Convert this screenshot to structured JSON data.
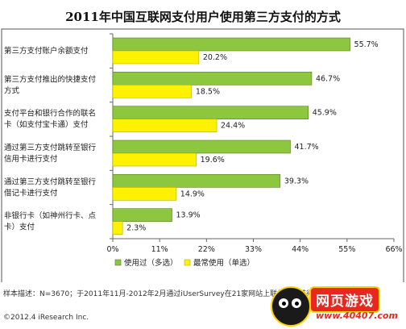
{
  "title": "2011年中国互联网支付用户使用第三方支付的方式",
  "source": "样本描述：N=3670；于2011年11月-2012年2月通过iUserSurvey在21家网站上联机调研获得",
  "copyright": "©2012.4 iResearch Inc.",
  "badge": {
    "name": "网页游戏",
    "url": "www.40407.com"
  },
  "colors": {
    "series1": "#8dc63f",
    "series2": "#fff200",
    "border": "#555555",
    "grid": "#bfbfbf"
  },
  "chart_data": {
    "type": "bar",
    "orientation": "horizontal",
    "title": "2011年中国互联网支付用户使用第三方支付的方式",
    "categories": [
      "第三方支付账户余额支付",
      "第三方支付推出的快捷支付方式",
      "支付平台和银行合作的联名卡（如支付宝卡通）支付",
      "通过第三方支付跳转至银行信用卡进行支付",
      "通过第三方支付跳转至银行借记卡进行支付",
      "非银行卡（如神州行卡、点卡）支付"
    ],
    "category_lines": [
      [
        "第三方支付账户余额支付"
      ],
      [
        "第三方支付推出的快捷支付",
        "方式"
      ],
      [
        "支付平台和银行合作的联名",
        "卡（如支付宝卡通）支付"
      ],
      [
        "通过第三方支付跳转至银行",
        "信用卡进行支付"
      ],
      [
        "通过第三方支付跳转至银行",
        "借记卡进行支付"
      ],
      [
        "非银行卡（如神州行卡、点",
        "卡）支付"
      ]
    ],
    "series": [
      {
        "name": "使用过（多选）",
        "values": [
          55.7,
          46.7,
          45.9,
          41.7,
          39.3,
          13.9
        ],
        "labels": [
          "55.7%",
          "46.7%",
          "45.9%",
          "41.7%",
          "39.3%",
          "13.9%"
        ]
      },
      {
        "name": "最常使用（单选）",
        "values": [
          20.2,
          18.5,
          24.4,
          19.6,
          14.9,
          2.3
        ],
        "labels": [
          "20.2%",
          "18.5%",
          "24.4%",
          "19.6%",
          "14.9%",
          "2.3%"
        ]
      }
    ],
    "xlim": [
      0,
      66
    ],
    "xticks": [
      "0%",
      "11%",
      "22%",
      "33%",
      "44%",
      "55%",
      "66%"
    ],
    "grid": false,
    "legend": "bottom"
  }
}
